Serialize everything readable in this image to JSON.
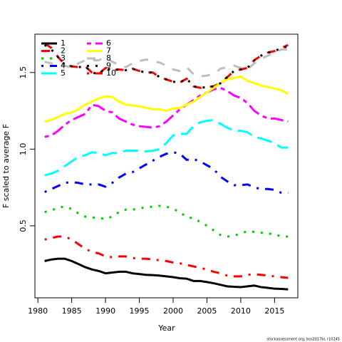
{
  "chart_data": {
    "type": "line",
    "xlabel": "Year",
    "ylabel": "F scaled to average F",
    "footnote": "stockassessment.org, bss2017bl, r10245",
    "x": [
      1981,
      1982,
      1983,
      1984,
      1985,
      1986,
      1987,
      1988,
      1989,
      1990,
      1991,
      1992,
      1993,
      1994,
      1995,
      1996,
      1997,
      1998,
      1999,
      2000,
      2001,
      2002,
      2003,
      2004,
      2005,
      2006,
      2007,
      2008,
      2009,
      2010,
      2011,
      2012,
      2013,
      2014,
      2015,
      2016,
      2017
    ],
    "xlim": [
      1979.56,
      2018.44
    ],
    "xticks": [
      1980,
      1985,
      1990,
      1995,
      2000,
      2005,
      2010,
      2015
    ],
    "ylim": [
      0.03,
      1.75
    ],
    "yticks": [
      0.5,
      {
        "value": 1,
        "label": "1.0"
      },
      1.5
    ],
    "legend": "top-left",
    "series": [
      {
        "name": "1",
        "color": "#000000",
        "linestyle": "solid",
        "values": [
          0.27,
          0.28,
          0.285,
          0.285,
          0.27,
          0.25,
          0.23,
          0.215,
          0.205,
          0.19,
          0.195,
          0.2,
          0.2,
          0.19,
          0.185,
          0.18,
          0.178,
          0.175,
          0.17,
          0.165,
          0.158,
          0.155,
          0.14,
          0.14,
          0.133,
          0.125,
          0.115,
          0.105,
          0.102,
          0.1,
          0.105,
          0.11,
          0.1,
          0.095,
          0.09,
          0.088,
          0.085
        ]
      },
      {
        "name": "2",
        "color": "#ff0000",
        "linestyle": "dashed",
        "values": [
          1.69,
          1.66,
          1.6,
          1.55,
          1.54,
          1.535,
          1.54,
          1.5,
          1.49,
          1.53,
          1.515,
          1.52,
          1.515,
          1.525,
          1.51,
          1.5,
          1.5,
          1.47,
          1.455,
          1.44,
          1.435,
          1.46,
          1.41,
          1.4,
          1.405,
          1.41,
          1.43,
          1.47,
          1.51,
          1.52,
          1.53,
          1.58,
          1.61,
          1.63,
          1.64,
          1.66,
          1.68
        ]
      },
      {
        "name": "3",
        "color": "#00cd00",
        "linestyle": "dotted",
        "values": [
          0.59,
          0.6,
          0.62,
          0.625,
          0.61,
          0.58,
          0.56,
          0.555,
          0.55,
          0.545,
          0.56,
          0.59,
          0.605,
          0.605,
          0.615,
          0.62,
          0.625,
          0.63,
          0.625,
          0.61,
          0.59,
          0.555,
          0.55,
          0.525,
          0.5,
          0.47,
          0.44,
          0.43,
          0.435,
          0.45,
          0.465,
          0.46,
          0.455,
          0.45,
          0.445,
          0.43,
          0.43
        ]
      },
      {
        "name": "4",
        "color": "#0000ff",
        "linestyle": "dotdash",
        "values": [
          0.72,
          0.74,
          0.76,
          0.78,
          0.785,
          0.78,
          0.77,
          0.77,
          0.77,
          0.755,
          0.78,
          0.815,
          0.84,
          0.85,
          0.875,
          0.9,
          0.925,
          0.95,
          0.97,
          0.98,
          0.97,
          0.93,
          0.935,
          0.92,
          0.895,
          0.87,
          0.82,
          0.79,
          0.765,
          0.765,
          0.77,
          0.75,
          0.74,
          0.74,
          0.735,
          0.715,
          0.715
        ]
      },
      {
        "name": "5",
        "color": "#00ffff",
        "linestyle": "longdash",
        "values": [
          0.83,
          0.84,
          0.86,
          0.89,
          0.92,
          0.95,
          0.96,
          0.98,
          0.975,
          0.96,
          0.975,
          0.975,
          0.99,
          0.99,
          0.99,
          0.985,
          0.99,
          1.0,
          1.04,
          1.09,
          1.1,
          1.1,
          1.15,
          1.175,
          1.185,
          1.19,
          1.165,
          1.14,
          1.12,
          1.12,
          1.11,
          1.08,
          1.07,
          1.055,
          1.04,
          1.01,
          1.01
        ]
      },
      {
        "name": "6",
        "color": "#ff00ff",
        "linestyle": "twodash",
        "values": [
          1.08,
          1.09,
          1.12,
          1.16,
          1.19,
          1.21,
          1.23,
          1.29,
          1.28,
          1.25,
          1.24,
          1.2,
          1.18,
          1.16,
          1.15,
          1.145,
          1.14,
          1.15,
          1.18,
          1.22,
          1.26,
          1.29,
          1.32,
          1.35,
          1.37,
          1.39,
          1.4,
          1.38,
          1.35,
          1.335,
          1.3,
          1.25,
          1.22,
          1.2,
          1.2,
          1.19,
          1.18
        ]
      },
      {
        "name": "7",
        "color": "#ffff00",
        "linestyle": "solid",
        "values": [
          1.18,
          1.19,
          1.21,
          1.23,
          1.24,
          1.26,
          1.29,
          1.31,
          1.33,
          1.345,
          1.34,
          1.31,
          1.29,
          1.285,
          1.28,
          1.27,
          1.26,
          1.26,
          1.25,
          1.265,
          1.27,
          1.29,
          1.31,
          1.34,
          1.37,
          1.4,
          1.43,
          1.455,
          1.465,
          1.475,
          1.445,
          1.43,
          1.415,
          1.405,
          1.395,
          1.385,
          1.36
        ]
      },
      {
        "name": "8",
        "color": "#bebebe",
        "linestyle": "dashed",
        "values": [
          1.57,
          1.56,
          1.555,
          1.545,
          1.53,
          1.56,
          1.58,
          1.58,
          1.58,
          1.6,
          1.57,
          1.55,
          1.535,
          1.56,
          1.575,
          1.585,
          1.575,
          1.565,
          1.545,
          1.52,
          1.51,
          1.535,
          1.49,
          1.475,
          1.48,
          1.49,
          1.525,
          1.535,
          1.545,
          1.53,
          1.52,
          1.56,
          1.59,
          1.61,
          1.63,
          1.65,
          1.65
        ]
      },
      {
        "name": "9",
        "color": "#000000",
        "linestyle": "dotted",
        "values": [
          1.68,
          1.65,
          1.6,
          1.55,
          1.54,
          1.535,
          1.54,
          1.5,
          1.49,
          1.53,
          1.515,
          1.52,
          1.515,
          1.525,
          1.51,
          1.5,
          1.5,
          1.47,
          1.455,
          1.44,
          1.435,
          1.46,
          1.41,
          1.4,
          1.405,
          1.41,
          1.43,
          1.47,
          1.51,
          1.52,
          1.53,
          1.58,
          1.61,
          1.63,
          1.64,
          1.66,
          1.67
        ]
      },
      {
        "name": "10",
        "color": "#ff0000",
        "linestyle": "dotdash",
        "values": [
          0.41,
          0.42,
          0.43,
          0.43,
          0.41,
          0.38,
          0.35,
          0.33,
          0.32,
          0.3,
          0.295,
          0.3,
          0.3,
          0.29,
          0.285,
          0.285,
          0.28,
          0.275,
          0.27,
          0.26,
          0.255,
          0.245,
          0.235,
          0.225,
          0.215,
          0.2,
          0.19,
          0.175,
          0.17,
          0.17,
          0.18,
          0.185,
          0.18,
          0.175,
          0.17,
          0.165,
          0.16
        ]
      }
    ]
  }
}
